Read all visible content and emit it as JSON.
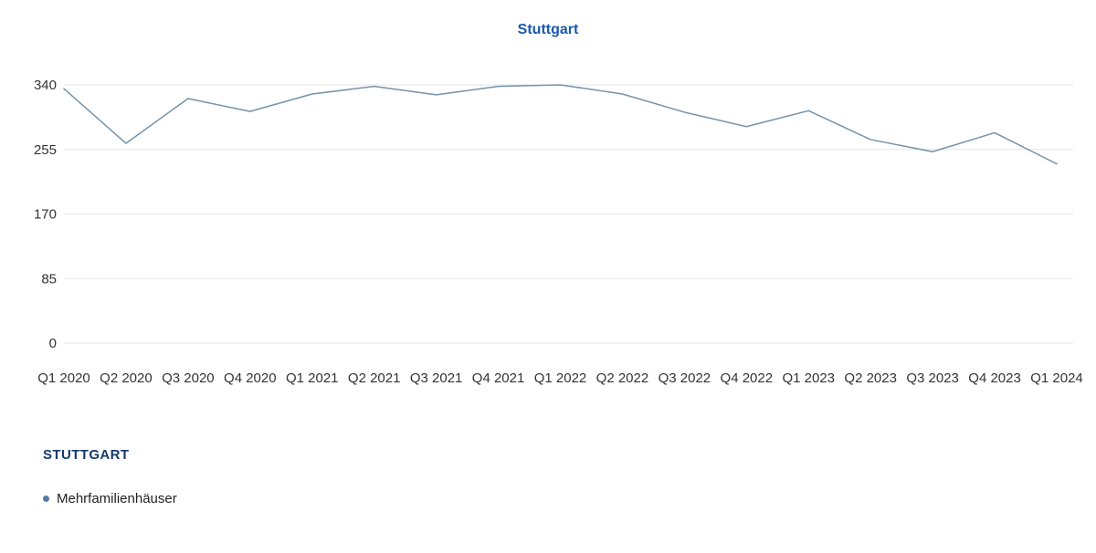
{
  "header": {
    "title": "Stuttgart"
  },
  "chart_data": {
    "type": "line",
    "title": "Stuttgart",
    "categories": [
      "Q1 2020",
      "Q2 2020",
      "Q3 2020",
      "Q4 2020",
      "Q1 2021",
      "Q2 2021",
      "Q3 2021",
      "Q4 2021",
      "Q1 2022",
      "Q2 2022",
      "Q3 2022",
      "Q4 2022",
      "Q1 2023",
      "Q2 2023",
      "Q3 2023",
      "Q4 2023",
      "Q1 2024"
    ],
    "series": [
      {
        "name": "Mehrfamilienhäuser",
        "values": [
          335,
          263,
          322,
          305,
          328,
          338,
          327,
          338,
          340,
          328,
          304,
          285,
          306,
          268,
          252,
          277,
          236
        ]
      }
    ],
    "xlabel": "",
    "ylabel": "",
    "ylim": [
      0,
      340
    ],
    "yticks": [
      0,
      85,
      170,
      255,
      340
    ],
    "grid": "horizontal-only",
    "legend_position": "bottom-left",
    "legend_group_title": "STUTTGART"
  },
  "legend": {
    "group_title": "STUTTGART",
    "items": [
      {
        "label": "Mehrfamilienhäuser",
        "marker": "dot-icon",
        "marker_color": "#567da6"
      }
    ]
  },
  "colors": {
    "title-color": "#1b58ad",
    "legend-title-color": "#17396b",
    "axis-label-color": "#333333",
    "grid-color": "#e6e6e6",
    "line-color": "#7593a9",
    "marker-color": "#567da6",
    "bg": "#ffffff"
  }
}
